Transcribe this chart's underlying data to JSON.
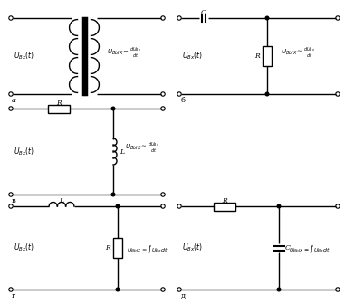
{
  "background_color": "#ffffff",
  "line_color": "#000000",
  "line_width": 1.0,
  "fig_width": 3.81,
  "fig_height": 3.36,
  "dpi": 100,
  "circuits": {
    "A": {
      "label": "a",
      "type": "transformer_diff"
    },
    "B": {
      "label": "б",
      "type": "CR_diff"
    },
    "C": {
      "label": "в",
      "type": "RL_diff"
    },
    "D": {
      "label": "г",
      "type": "LR_int"
    },
    "E": {
      "label": "д",
      "type": "RC_int"
    }
  }
}
